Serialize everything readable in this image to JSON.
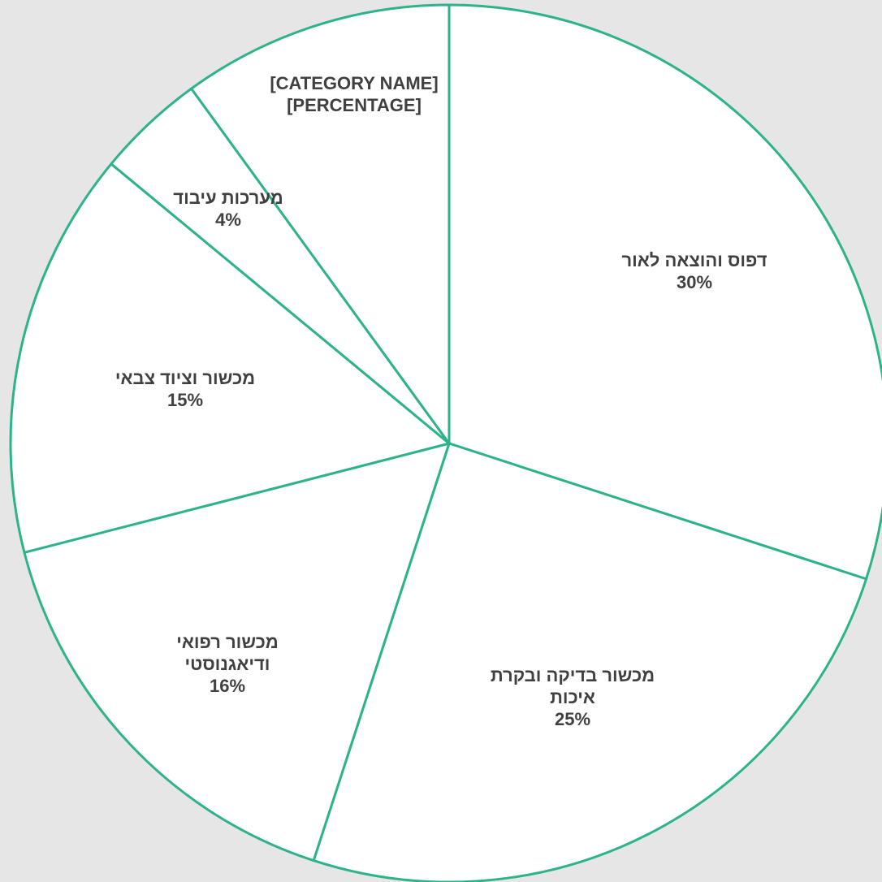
{
  "chart_data": {
    "type": "pie",
    "slices": [
      {
        "label_lines": [
          "דפוס והוצאה לאור"
        ],
        "value": 30,
        "value_label": "30%"
      },
      {
        "label_lines": [
          "מכשור בדיקה ובקרת",
          "איכות"
        ],
        "value": 25,
        "value_label": "25%"
      },
      {
        "label_lines": [
          "מכשור רפואי",
          "ודיאגנוסטי"
        ],
        "value": 16,
        "value_label": "16%"
      },
      {
        "label_lines": [
          "מכשור וציוד צבאי"
        ],
        "value": 15,
        "value_label": "15%"
      },
      {
        "label_lines": [
          "מערכות עיבוד"
        ],
        "value": 4,
        "value_label": "4%"
      },
      {
        "label_lines": [
          "[CATEGORY NAME]"
        ],
        "value": 10,
        "value_label": "[PERCENTAGE]"
      }
    ],
    "start_angle_deg": 0,
    "direction": "clockwise",
    "colors": {
      "background": "#e6e6e6",
      "slice_fill": "#ffffff",
      "slice_stroke": "#2db38a",
      "label_text": "#404040"
    }
  }
}
